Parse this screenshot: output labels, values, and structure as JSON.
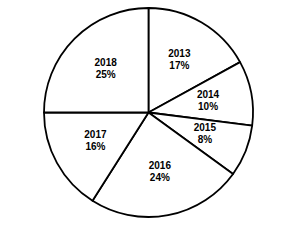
{
  "chart_data": {
    "type": "pie",
    "categories": [
      "2013",
      "2014",
      "2015",
      "2016",
      "2017",
      "2018"
    ],
    "values": [
      17,
      10,
      8,
      24,
      16,
      25
    ],
    "value_labels": [
      "17%",
      "10%",
      "8%",
      "24%",
      "16%",
      "25%"
    ],
    "colors": [
      "#ffffff",
      "#ffffff",
      "#ffffff",
      "#ffffff",
      "#ffffff",
      "#ffffff"
    ],
    "data_labels": true
  }
}
